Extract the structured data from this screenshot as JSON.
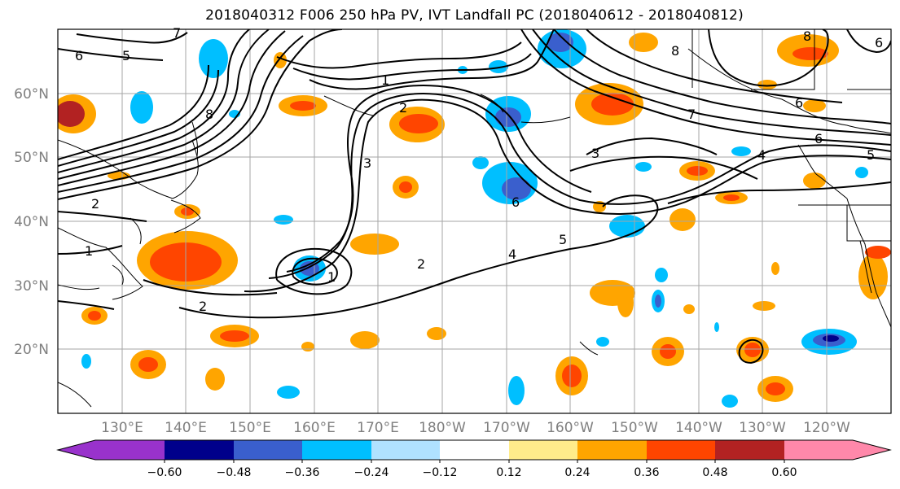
{
  "title": "2018040312 F006 250 hPa PV, IVT Landfall PC (2018040612 - 2018040812)",
  "lat_labels": [
    "60°N",
    "50°N",
    "40°N",
    "30°N",
    "20°N"
  ],
  "lon_labels": [
    "130°E",
    "140°E",
    "150°E",
    "160°E",
    "170°E",
    "180°W",
    "170°W",
    "160°W",
    "150°W",
    "140°W",
    "130°W",
    "120°W"
  ],
  "colorbar": {
    "ticks": [
      "−0.60",
      "−0.48",
      "−0.36",
      "−0.24",
      "−0.12",
      "0.12",
      "0.24",
      "0.36",
      "0.48",
      "0.60"
    ],
    "colors": [
      "#9932cc",
      "#00008b",
      "#3a5fcd",
      "#00bfff",
      "#b0e2ff",
      "#ffffff",
      "#ffec8b",
      "#ffa500",
      "#ff4500",
      "#b22222",
      "#ff88aa"
    ]
  },
  "contour_labels": [
    "6",
    "5",
    "7",
    "8",
    "1",
    "2",
    "3",
    "8",
    "7",
    "6",
    "5",
    "6",
    "4",
    "3",
    "2",
    "1",
    "6",
    "5",
    "4",
    "2",
    "1",
    "2",
    "8",
    "6"
  ],
  "colors": {
    "positive_light": "#ffec8b",
    "positive": "#ffa500",
    "positive_strong": "#ff4500",
    "positive_max": "#b22222",
    "negative_light": "#b0e2ff",
    "negative": "#00bfff",
    "negative_strong": "#3a5fcd",
    "negative_max": "#00008b",
    "grid": "#a6a6a6"
  }
}
